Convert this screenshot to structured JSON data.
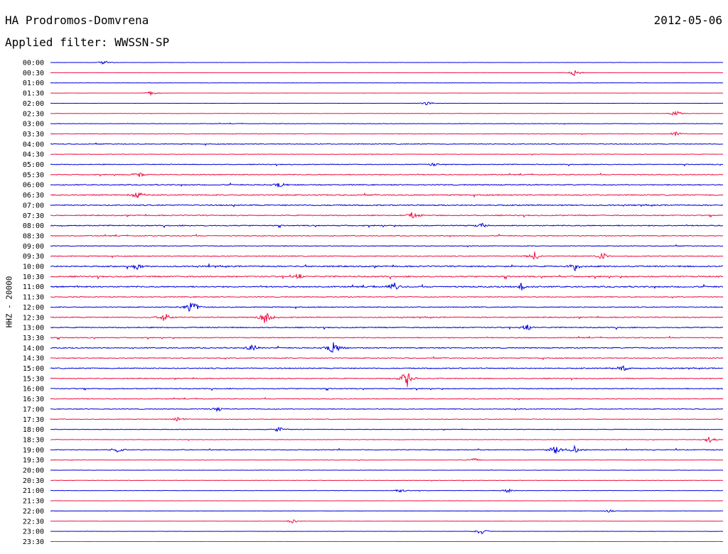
{
  "header": {
    "station": "HA Prodromos-Domvrena",
    "date": "2012-05-06",
    "filter": "Applied filter: WWSSN-SP"
  },
  "chart_data": {
    "type": "line",
    "title": "HA Prodromos-Domvrena",
    "subtitle": "Applied filter: WWSSN-SP",
    "date": "2012-05-06",
    "ylabel": "HHZ - 20000",
    "xlabel": "",
    "colors": {
      "even_rows": "#0000dd",
      "odd_rows": "#ee1144"
    },
    "row_labels": [
      "00:00",
      "00:30",
      "01:00",
      "01:30",
      "02:00",
      "02:30",
      "03:00",
      "03:30",
      "04:00",
      "04:30",
      "05:00",
      "05:30",
      "06:00",
      "06:30",
      "07:00",
      "07:30",
      "08:00",
      "08:30",
      "09:00",
      "09:30",
      "10:00",
      "10:30",
      "11:00",
      "11:30",
      "12:00",
      "12:30",
      "13:00",
      "13:30",
      "14:00",
      "14:30",
      "15:00",
      "15:30",
      "16:00",
      "16:30",
      "17:00",
      "17:30",
      "18:00",
      "18:30",
      "19:00",
      "19:30",
      "20:00",
      "20:30",
      "21:00",
      "21:30",
      "22:00",
      "22:30",
      "23:00",
      "23:30"
    ],
    "row_noise_level": [
      0.2,
      0.1,
      0.2,
      0.1,
      0.1,
      0.3,
      0.4,
      0.5,
      0.6,
      0.4,
      0.6,
      0.7,
      0.8,
      0.9,
      0.9,
      0.8,
      0.8,
      0.7,
      0.6,
      0.7,
      1.0,
      1.0,
      1.0,
      0.7,
      0.7,
      0.8,
      0.8,
      0.7,
      0.8,
      0.7,
      0.8,
      0.7,
      0.7,
      0.6,
      0.6,
      0.5,
      0.5,
      0.4,
      0.6,
      0.3,
      0.3,
      0.3,
      0.3,
      0.2,
      0.2,
      0.2,
      0.2,
      0.1
    ],
    "events": [
      {
        "row": 0,
        "x": 0.08,
        "amp": 0.3
      },
      {
        "row": 1,
        "x": 0.78,
        "amp": 0.5
      },
      {
        "row": 3,
        "x": 0.15,
        "amp": 0.3
      },
      {
        "row": 4,
        "x": 0.56,
        "amp": 0.3
      },
      {
        "row": 5,
        "x": 0.93,
        "amp": 0.4
      },
      {
        "row": 7,
        "x": 0.93,
        "amp": 0.4
      },
      {
        "row": 10,
        "x": 0.57,
        "amp": 0.3
      },
      {
        "row": 11,
        "x": 0.13,
        "amp": 0.5
      },
      {
        "row": 12,
        "x": 0.34,
        "amp": 0.5
      },
      {
        "row": 13,
        "x": 0.13,
        "amp": 0.7
      },
      {
        "row": 15,
        "x": 0.54,
        "amp": 0.5
      },
      {
        "row": 16,
        "x": 0.64,
        "amp": 0.4
      },
      {
        "row": 19,
        "x": 0.72,
        "amp": 0.6
      },
      {
        "row": 19,
        "x": 0.82,
        "amp": 0.6
      },
      {
        "row": 20,
        "x": 0.13,
        "amp": 0.5
      },
      {
        "row": 20,
        "x": 0.78,
        "amp": 0.6
      },
      {
        "row": 21,
        "x": 0.37,
        "amp": 0.4
      },
      {
        "row": 22,
        "x": 0.51,
        "amp": 0.6
      },
      {
        "row": 22,
        "x": 0.7,
        "amp": 0.6
      },
      {
        "row": 24,
        "x": 0.21,
        "amp": 1.2
      },
      {
        "row": 25,
        "x": 0.32,
        "amp": 1.2
      },
      {
        "row": 25,
        "x": 0.17,
        "amp": 0.8
      },
      {
        "row": 26,
        "x": 0.71,
        "amp": 0.5
      },
      {
        "row": 28,
        "x": 0.42,
        "amp": 1.2
      },
      {
        "row": 28,
        "x": 0.3,
        "amp": 0.5
      },
      {
        "row": 30,
        "x": 0.85,
        "amp": 0.5
      },
      {
        "row": 31,
        "x": 0.53,
        "amp": 1.3
      },
      {
        "row": 34,
        "x": 0.25,
        "amp": 0.4
      },
      {
        "row": 35,
        "x": 0.19,
        "amp": 0.4
      },
      {
        "row": 36,
        "x": 0.34,
        "amp": 0.4
      },
      {
        "row": 37,
        "x": 0.98,
        "amp": 0.5
      },
      {
        "row": 38,
        "x": 0.75,
        "amp": 0.7
      },
      {
        "row": 38,
        "x": 0.78,
        "amp": 0.6
      },
      {
        "row": 38,
        "x": 0.1,
        "amp": 0.4
      },
      {
        "row": 39,
        "x": 0.63,
        "amp": 0.3
      },
      {
        "row": 42,
        "x": 0.52,
        "amp": 0.3
      },
      {
        "row": 42,
        "x": 0.68,
        "amp": 0.3
      },
      {
        "row": 44,
        "x": 0.83,
        "amp": 0.2
      },
      {
        "row": 45,
        "x": 0.36,
        "amp": 0.3
      },
      {
        "row": 46,
        "x": 0.64,
        "amp": 0.5
      }
    ]
  }
}
